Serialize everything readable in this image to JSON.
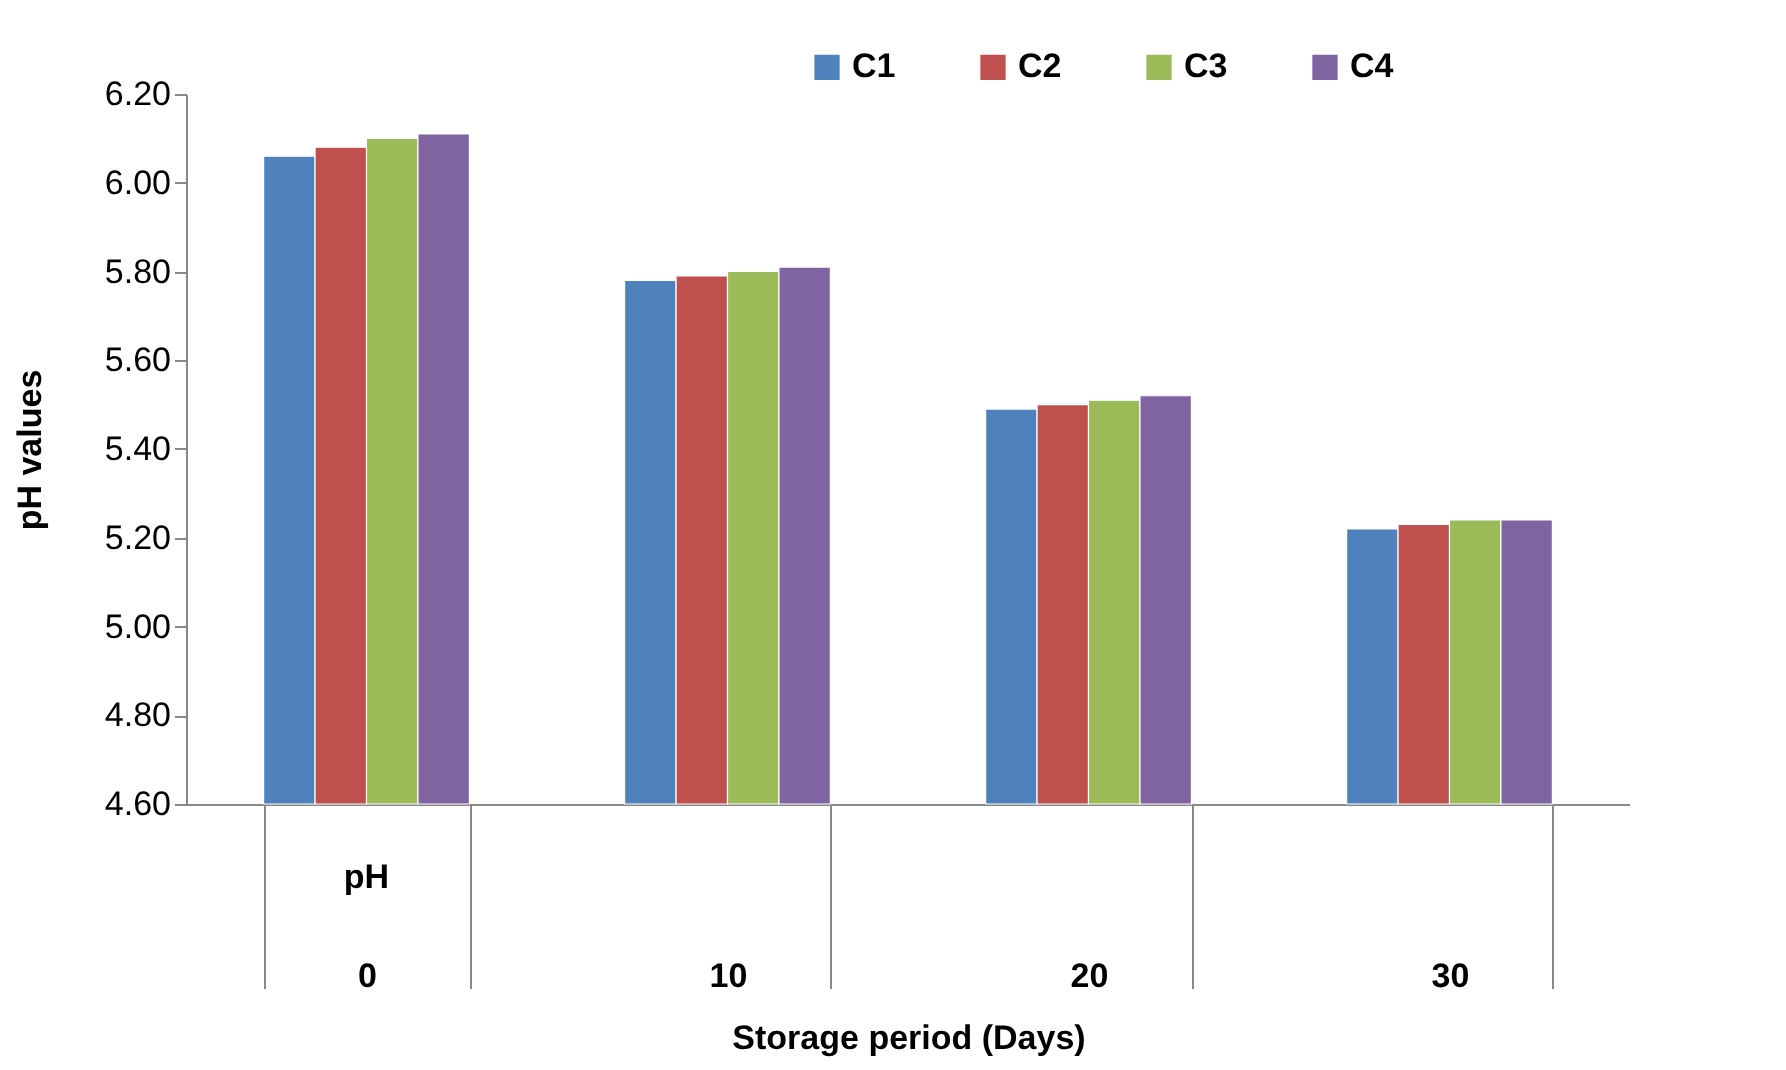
{
  "chart_data": {
    "type": "bar",
    "xlabel": "Storage period (Days)",
    "ylabel": "pH values",
    "categories": [
      "0",
      "10",
      "20",
      "30"
    ],
    "series": [
      {
        "name": "C1",
        "color": "#4f81bd",
        "values": [
          6.06,
          5.78,
          5.49,
          5.22
        ]
      },
      {
        "name": "C2",
        "color": "#c0504d",
        "values": [
          6.08,
          5.79,
          5.5,
          5.23
        ]
      },
      {
        "name": "C3",
        "color": "#9bbb59",
        "values": [
          6.1,
          5.8,
          5.51,
          5.24
        ]
      },
      {
        "name": "C4",
        "color": "#8064a2",
        "values": [
          6.11,
          5.81,
          5.52,
          5.24
        ]
      }
    ],
    "ylim": [
      4.6,
      6.2
    ],
    "yticks": [
      {
        "value": 4.6,
        "label": "4.60"
      },
      {
        "value": 4.8,
        "label": "4.80"
      },
      {
        "value": 5.0,
        "label": "5.00"
      },
      {
        "value": 5.2,
        "label": "5.20"
      },
      {
        "value": 5.4,
        "label": "5.40"
      },
      {
        "value": 5.6,
        "label": "5.60"
      },
      {
        "value": 5.8,
        "label": "5.80"
      },
      {
        "value": 6.0,
        "label": "6.00"
      },
      {
        "value": 6.2,
        "label": "6.20"
      }
    ],
    "annotations": [
      "pH"
    ],
    "grid": false,
    "legend": "top right"
  }
}
